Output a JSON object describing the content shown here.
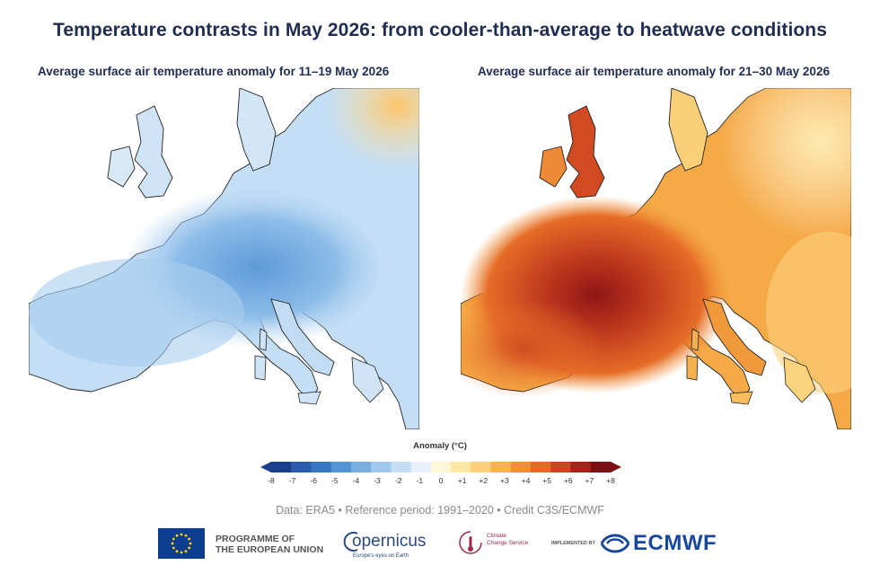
{
  "title": "Temperature contrasts in May 2026: from cooler-than-average to heatwave conditions",
  "maps": [
    {
      "subtitle": "Average surface air temperature anomaly for 11–19 May 2026",
      "scheme": "cool"
    },
    {
      "subtitle": "Average surface air temperature anomaly for 21–30 May 2026",
      "scheme": "warm"
    }
  ],
  "legend": {
    "title": "Anomaly (°C)",
    "ticks": [
      "-8",
      "-7",
      "-6",
      "-5",
      "-4",
      "-3",
      "-2",
      "-1",
      "0",
      "+1",
      "+2",
      "+3",
      "+4",
      "+5",
      "+6",
      "+7",
      "+8"
    ],
    "colors": [
      "#1c3f8c",
      "#2a5cae",
      "#3a78c4",
      "#5594d3",
      "#78afe0",
      "#9fc8ec",
      "#c6def5",
      "#e6f1fb",
      "#fff7d6",
      "#fde8a6",
      "#fcd079",
      "#f9b44f",
      "#f28f32",
      "#e46a25",
      "#cc4420",
      "#a52319",
      "#7a0f14"
    ]
  },
  "credit": "Data: ERA5 • Reference period: 1991–2020 • Credit C3S/ECMWF",
  "logos": {
    "eu_line1": "PROGRAMME OF",
    "eu_line2": "THE EUROPEAN UNION",
    "copernicus": "opernicus",
    "copernicus_tagline": "Europe's eyes on Earth",
    "c3s_line1": "Climate",
    "c3s_line2": "Change Service",
    "implemented_by": "IMPLEMENTED BY",
    "ecmwf": "ECMWF"
  }
}
